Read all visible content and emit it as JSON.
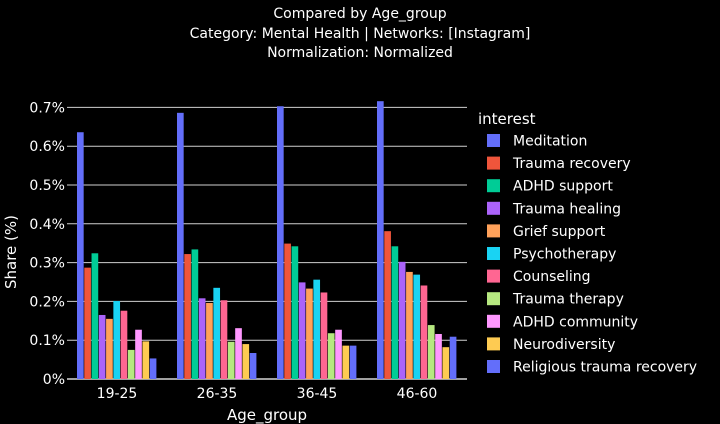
{
  "chart_data": {
    "type": "bar",
    "title_lines": [
      "Compared by Age_group",
      "Category: Mental Health | Networks: [Instagram]",
      "Normalization: Normalized"
    ],
    "xlabel": "Age_group",
    "ylabel": "Share (%)",
    "ylim": [
      0,
      0.75
    ],
    "yticks": [
      0,
      0.1,
      0.2,
      0.3,
      0.4,
      0.5,
      0.6,
      0.7
    ],
    "ytick_labels": [
      "0%",
      "0.1%",
      "0.2%",
      "0.3%",
      "0.4%",
      "0.5%",
      "0.6%",
      "0.7%"
    ],
    "grid": true,
    "legend_title": "interest",
    "legend_position": "right",
    "categories": [
      "19-25",
      "26-35",
      "36-45",
      "46-60"
    ],
    "series": [
      {
        "name": "Meditation",
        "color": "#636efa",
        "values": [
          0.636,
          0.686,
          0.703,
          0.716
        ]
      },
      {
        "name": "Trauma recovery",
        "color": "#ef553b",
        "values": [
          0.287,
          0.322,
          0.349,
          0.381
        ]
      },
      {
        "name": "ADHD support",
        "color": "#00cc96",
        "values": [
          0.324,
          0.334,
          0.342,
          0.342
        ]
      },
      {
        "name": "Trauma healing",
        "color": "#ab63fa",
        "values": [
          0.165,
          0.208,
          0.249,
          0.302
        ]
      },
      {
        "name": "Grief support",
        "color": "#ffa15a",
        "values": [
          0.155,
          0.196,
          0.233,
          0.276
        ]
      },
      {
        "name": "Psychotherapy",
        "color": "#19d3f3",
        "values": [
          0.201,
          0.235,
          0.256,
          0.269
        ]
      },
      {
        "name": "Counseling",
        "color": "#ff6692",
        "values": [
          0.176,
          0.203,
          0.223,
          0.241
        ]
      },
      {
        "name": "Trauma therapy",
        "color": "#b6e880",
        "values": [
          0.075,
          0.096,
          0.118,
          0.139
        ]
      },
      {
        "name": "ADHD community",
        "color": "#ff97ff",
        "values": [
          0.127,
          0.131,
          0.127,
          0.116
        ]
      },
      {
        "name": "Neurodiversity",
        "color": "#fecb52",
        "values": [
          0.097,
          0.09,
          0.086,
          0.082
        ]
      },
      {
        "name": "Religious trauma recovery",
        "color": "#636efa",
        "values": [
          0.053,
          0.067,
          0.086,
          0.109
        ]
      }
    ]
  }
}
